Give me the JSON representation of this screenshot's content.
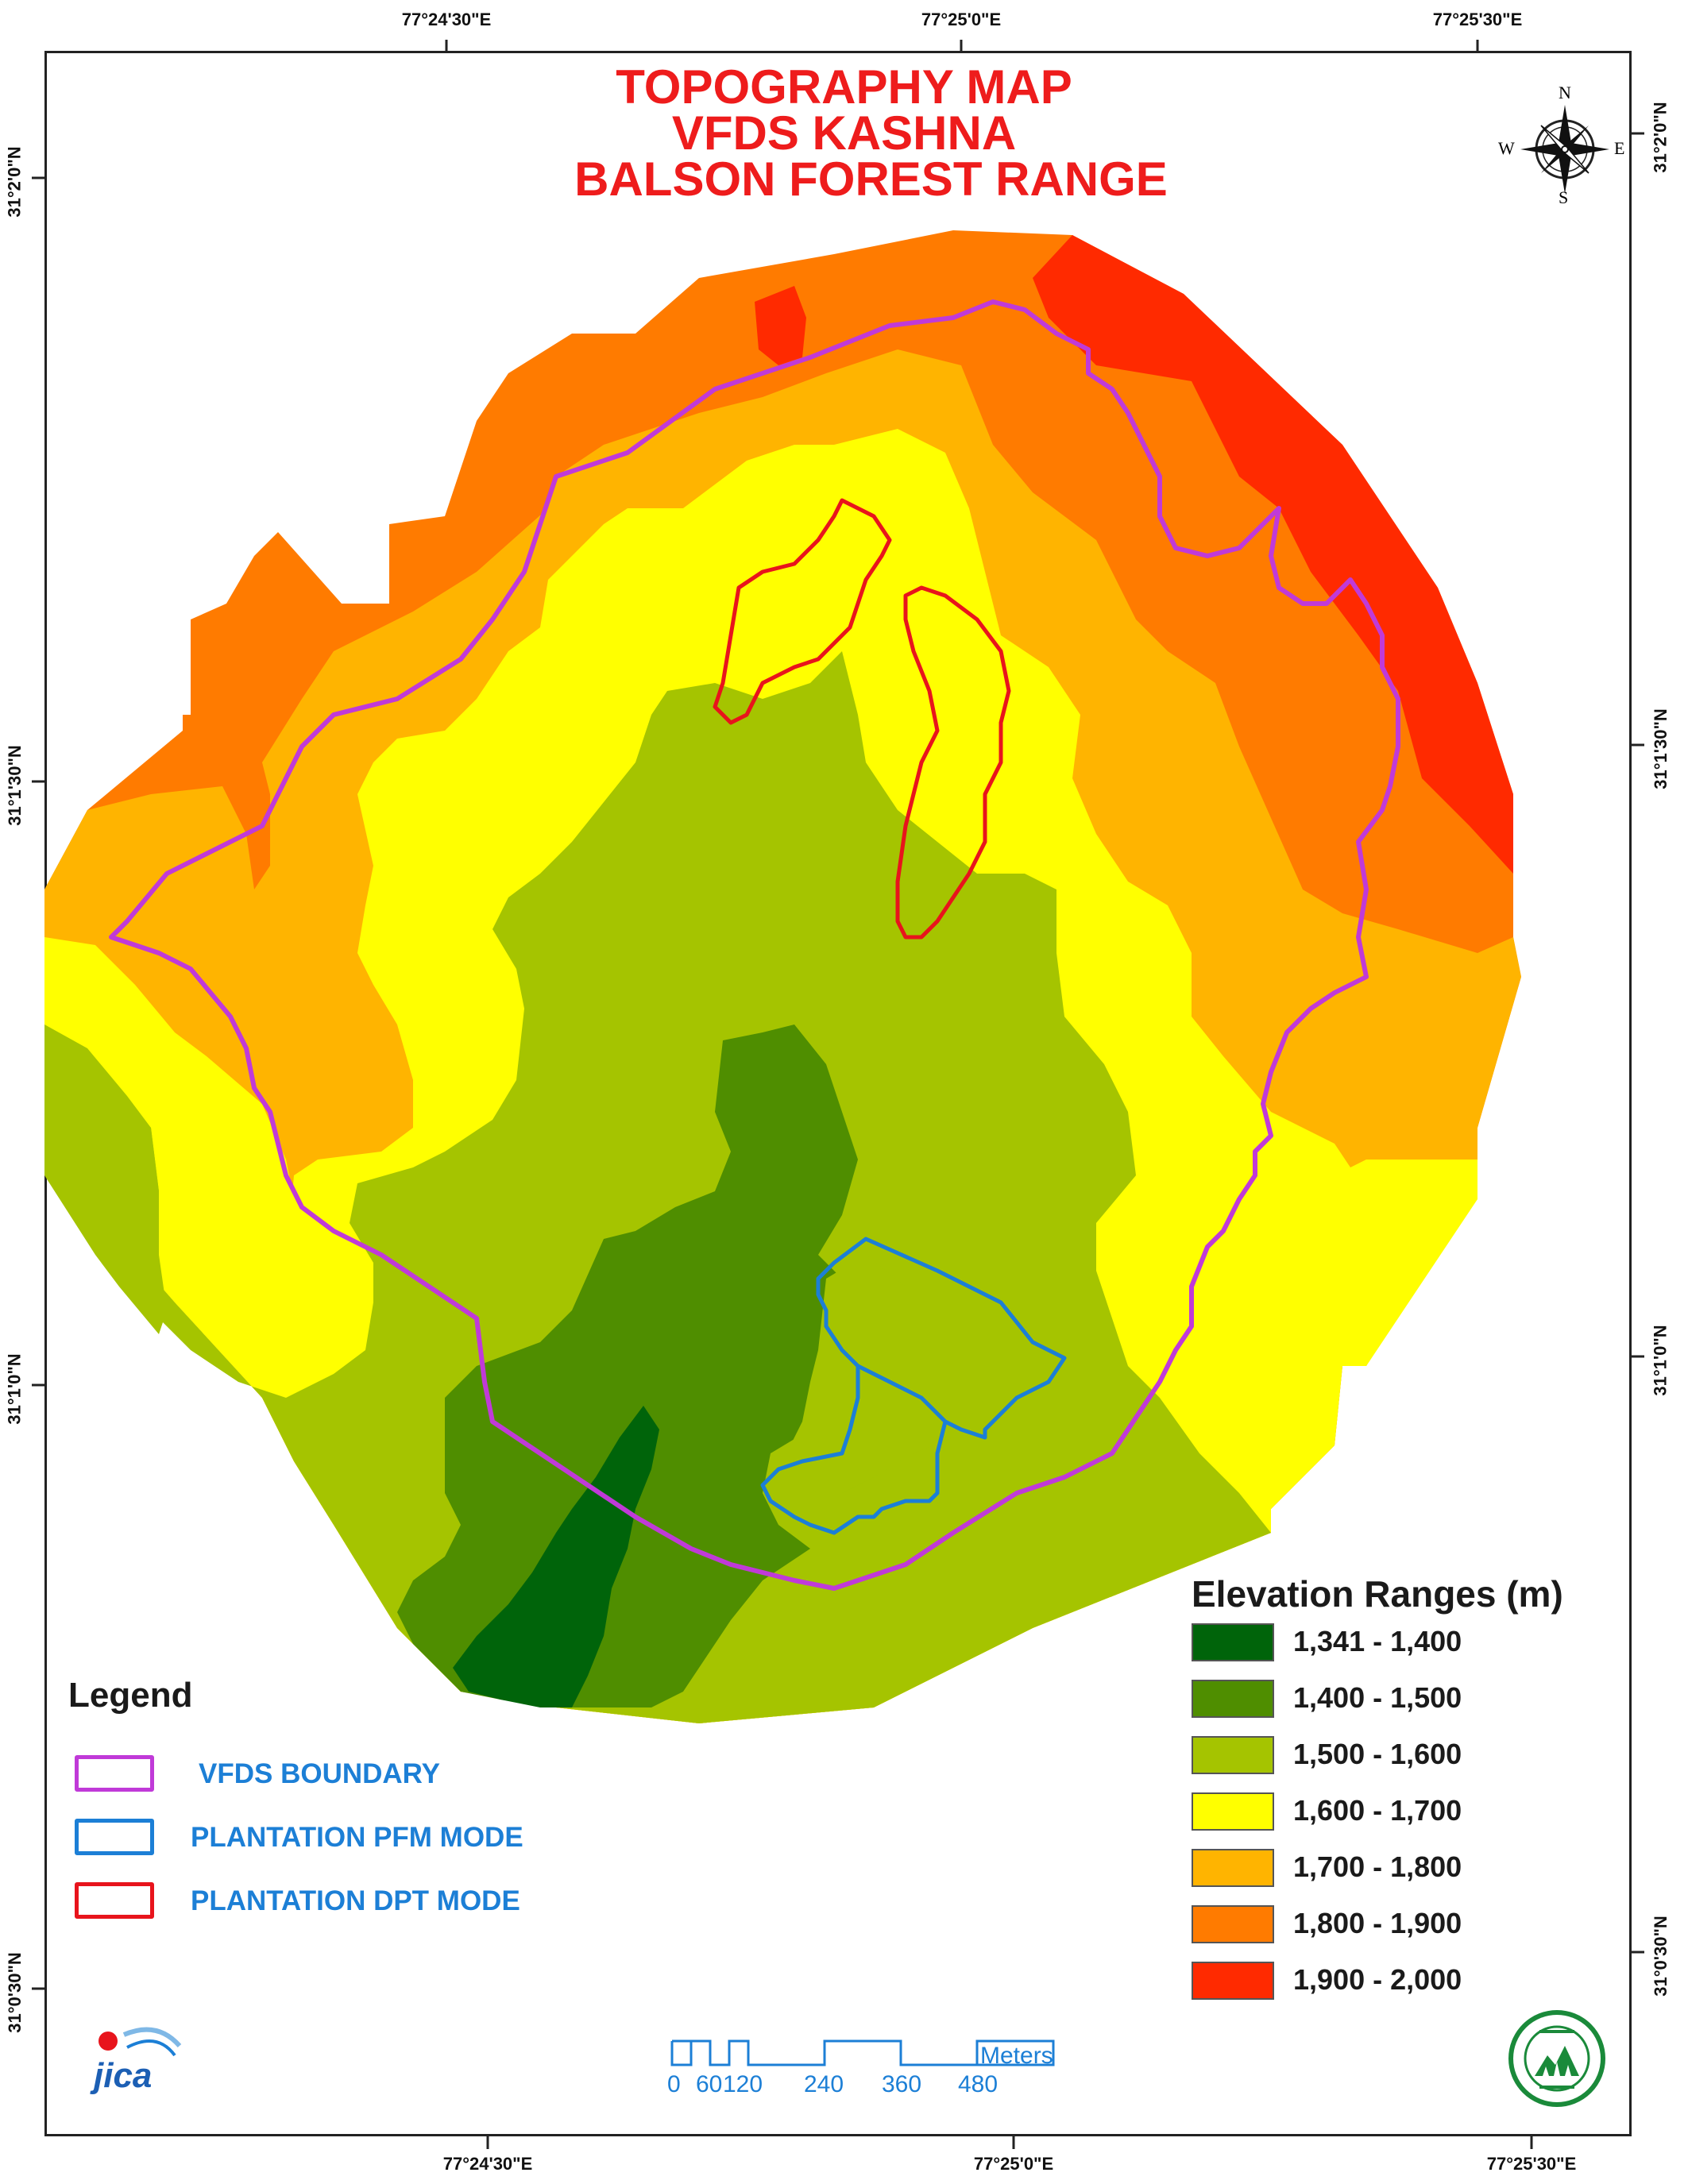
{
  "title": {
    "line1": "TOPOGRAPHY MAP",
    "line2": "VFDS KASHNA",
    "line3": "BALSON FOREST RANGE"
  },
  "graticule": {
    "top": [
      "77°24'30\"E",
      "77°25'0\"E",
      "77°25'30\"E"
    ],
    "bottom": [
      "77°24'30\"E",
      "77°25'0\"E",
      "77°25'30\"E"
    ],
    "left": [
      "31°2'0\"N",
      "31°1'30\"N",
      "31°1'0\"N",
      "31°0'30\"N"
    ],
    "right": [
      "31°2'0\"N",
      "31°1'30\"N",
      "31°1'0\"N",
      "31°0'30\"N"
    ]
  },
  "compass": {
    "n": "N",
    "s": "S",
    "e": "E",
    "w": "W"
  },
  "legend": {
    "title": "Legend",
    "items": [
      {
        "label": "VFDS BOUNDARY",
        "color": "#c03ad8"
      },
      {
        "label": "PLANTATION PFM MODE",
        "color": "#1c7fd6"
      },
      {
        "label": "PLANTATION DPT MODE",
        "color": "#e8141c"
      }
    ]
  },
  "elevation": {
    "title": "Elevation Ranges (m)",
    "classes": [
      {
        "label": "1,341 - 1,400",
        "color": "#00640a"
      },
      {
        "label": "1,400 - 1,500",
        "color": "#4f8e00"
      },
      {
        "label": "1,500 - 1,600",
        "color": "#a5c400"
      },
      {
        "label": "1,600 - 1,700",
        "color": "#ffff00"
      },
      {
        "label": "1,700 - 1,800",
        "color": "#ffb400"
      },
      {
        "label": "1,800 - 1,900",
        "color": "#ff7b00"
      },
      {
        "label": "1,900 - 2,000",
        "color": "#ff2a00"
      }
    ]
  },
  "scalebar": {
    "unit": "Meters",
    "ticks": [
      "0",
      "60",
      "120",
      "240",
      "360",
      "480"
    ]
  },
  "logos": {
    "left": "JICA",
    "right": "HP Forest Department"
  }
}
